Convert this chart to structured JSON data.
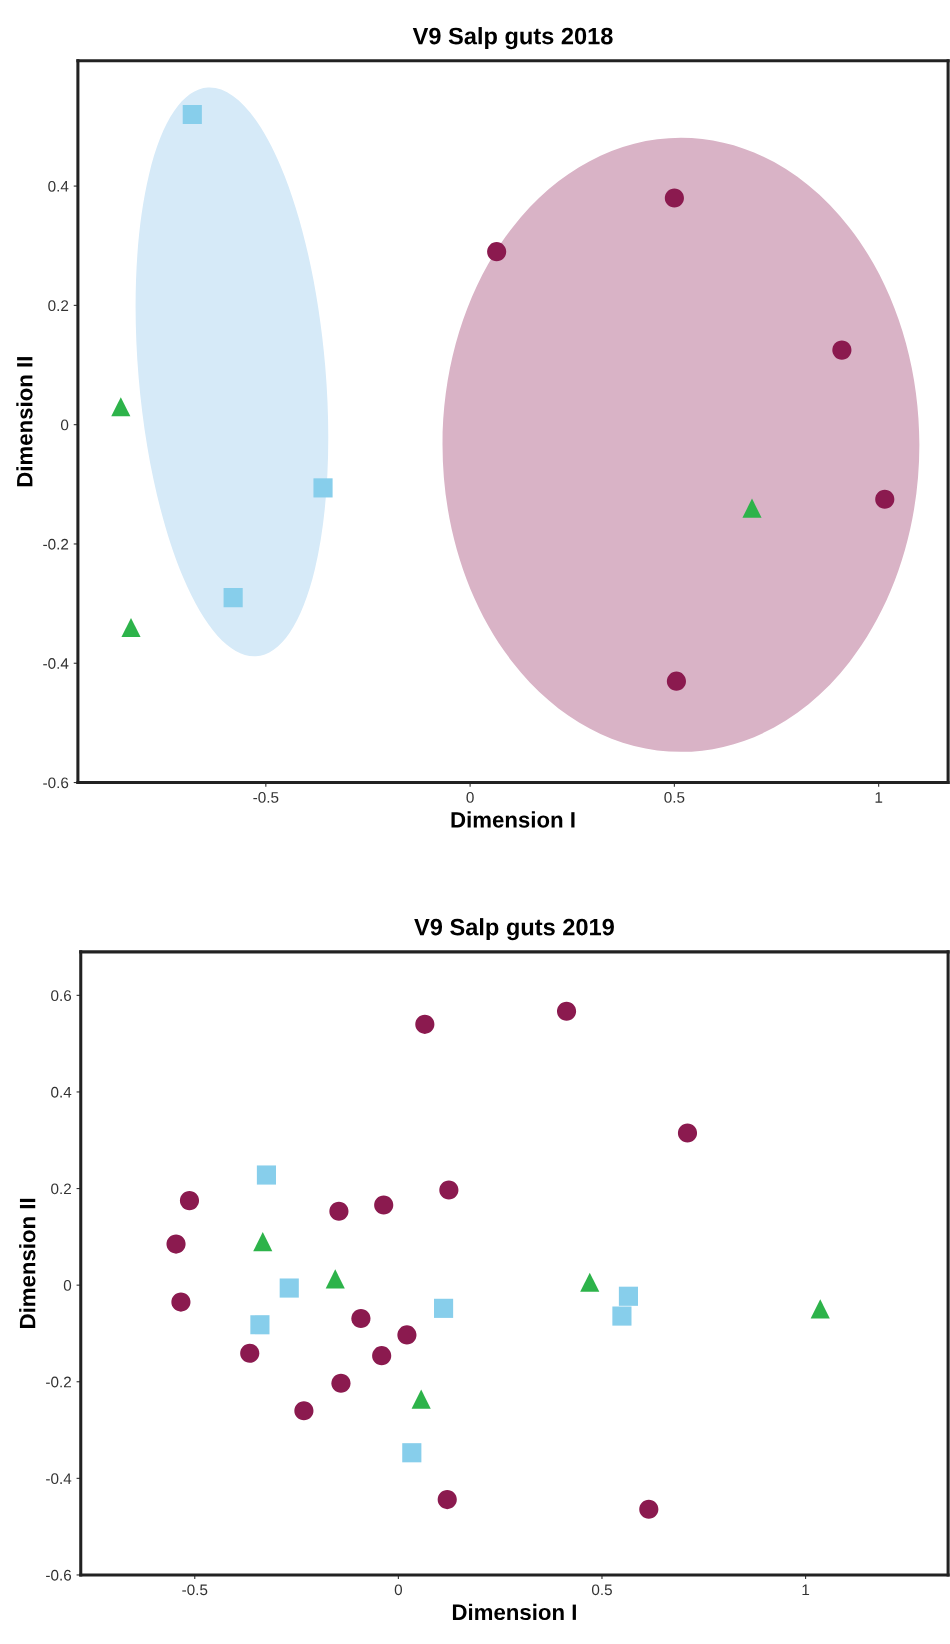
{
  "chart_data": [
    {
      "type": "scatter",
      "title": "V9 Salp guts 2018",
      "xlabel": "Dimension I",
      "ylabel": "Dimension II",
      "xlim": [
        -0.96,
        1.17
      ],
      "ylim": [
        -0.6,
        0.61
      ],
      "xticks": [
        -0.5,
        0,
        0.5,
        1
      ],
      "yticks": [
        -0.6,
        -0.4,
        -0.2,
        0,
        0.2,
        0.4
      ],
      "grid": false,
      "series": [
        {
          "color": "#8b1a4f",
          "marker": "circle",
          "x": [
            0.065,
            0.5,
            0.91,
            1.015,
            0.505
          ],
          "values": [
            0.29,
            0.38,
            0.125,
            -0.125,
            -0.43
          ]
        },
        {
          "color": "#87ceeb",
          "marker": "square",
          "x": [
            -0.68,
            -0.36,
            -0.58
          ],
          "values": [
            0.52,
            -0.106,
            -0.29
          ]
        },
        {
          "color": "#2db34a",
          "marker": "triangle",
          "x": [
            -0.855,
            -0.83,
            0.69
          ],
          "values": [
            0.03,
            -0.34,
            -0.14
          ]
        }
      ]
    },
    {
      "type": "scatter",
      "title": "V9 Salp guts 2019",
      "xlabel": "Dimension I",
      "ylabel": "Dimension II",
      "xlim": [
        -0.78,
        1.35
      ],
      "ylim": [
        -0.6,
        0.69
      ],
      "xticks": [
        -0.5,
        0,
        0.5,
        1
      ],
      "yticks": [
        -0.6,
        -0.4,
        -0.2,
        0,
        0.2,
        0.4,
        0.6
      ],
      "grid": false,
      "series": [
        {
          "color": "#8b1a4f",
          "marker": "circle",
          "x": [
            0.065,
            0.413,
            0.71,
            -0.513,
            -0.546,
            -0.534,
            -0.146,
            -0.036,
            0.124,
            -0.092,
            0.021,
            -0.365,
            -0.041,
            -0.141,
            -0.232,
            0.12,
            0.615
          ],
          "values": [
            0.54,
            0.567,
            0.315,
            0.175,
            0.085,
            -0.035,
            0.153,
            0.166,
            0.197,
            -0.069,
            -0.103,
            -0.141,
            -0.146,
            -0.203,
            -0.26,
            -0.444,
            -0.464
          ]
        },
        {
          "color": "#87ceeb",
          "marker": "square",
          "x": [
            -0.324,
            -0.268,
            -0.34,
            0.111,
            0.565,
            0.549,
            0.033
          ],
          "values": [
            0.228,
            -0.006,
            -0.082,
            -0.048,
            -0.023,
            -0.064,
            -0.347
          ]
        },
        {
          "color": "#2db34a",
          "marker": "triangle",
          "x": [
            -0.333,
            -0.155,
            0.47,
            1.036,
            0.056
          ],
          "values": [
            0.09,
            0.013,
            0.006,
            -0.049,
            -0.236
          ]
        }
      ]
    }
  ]
}
